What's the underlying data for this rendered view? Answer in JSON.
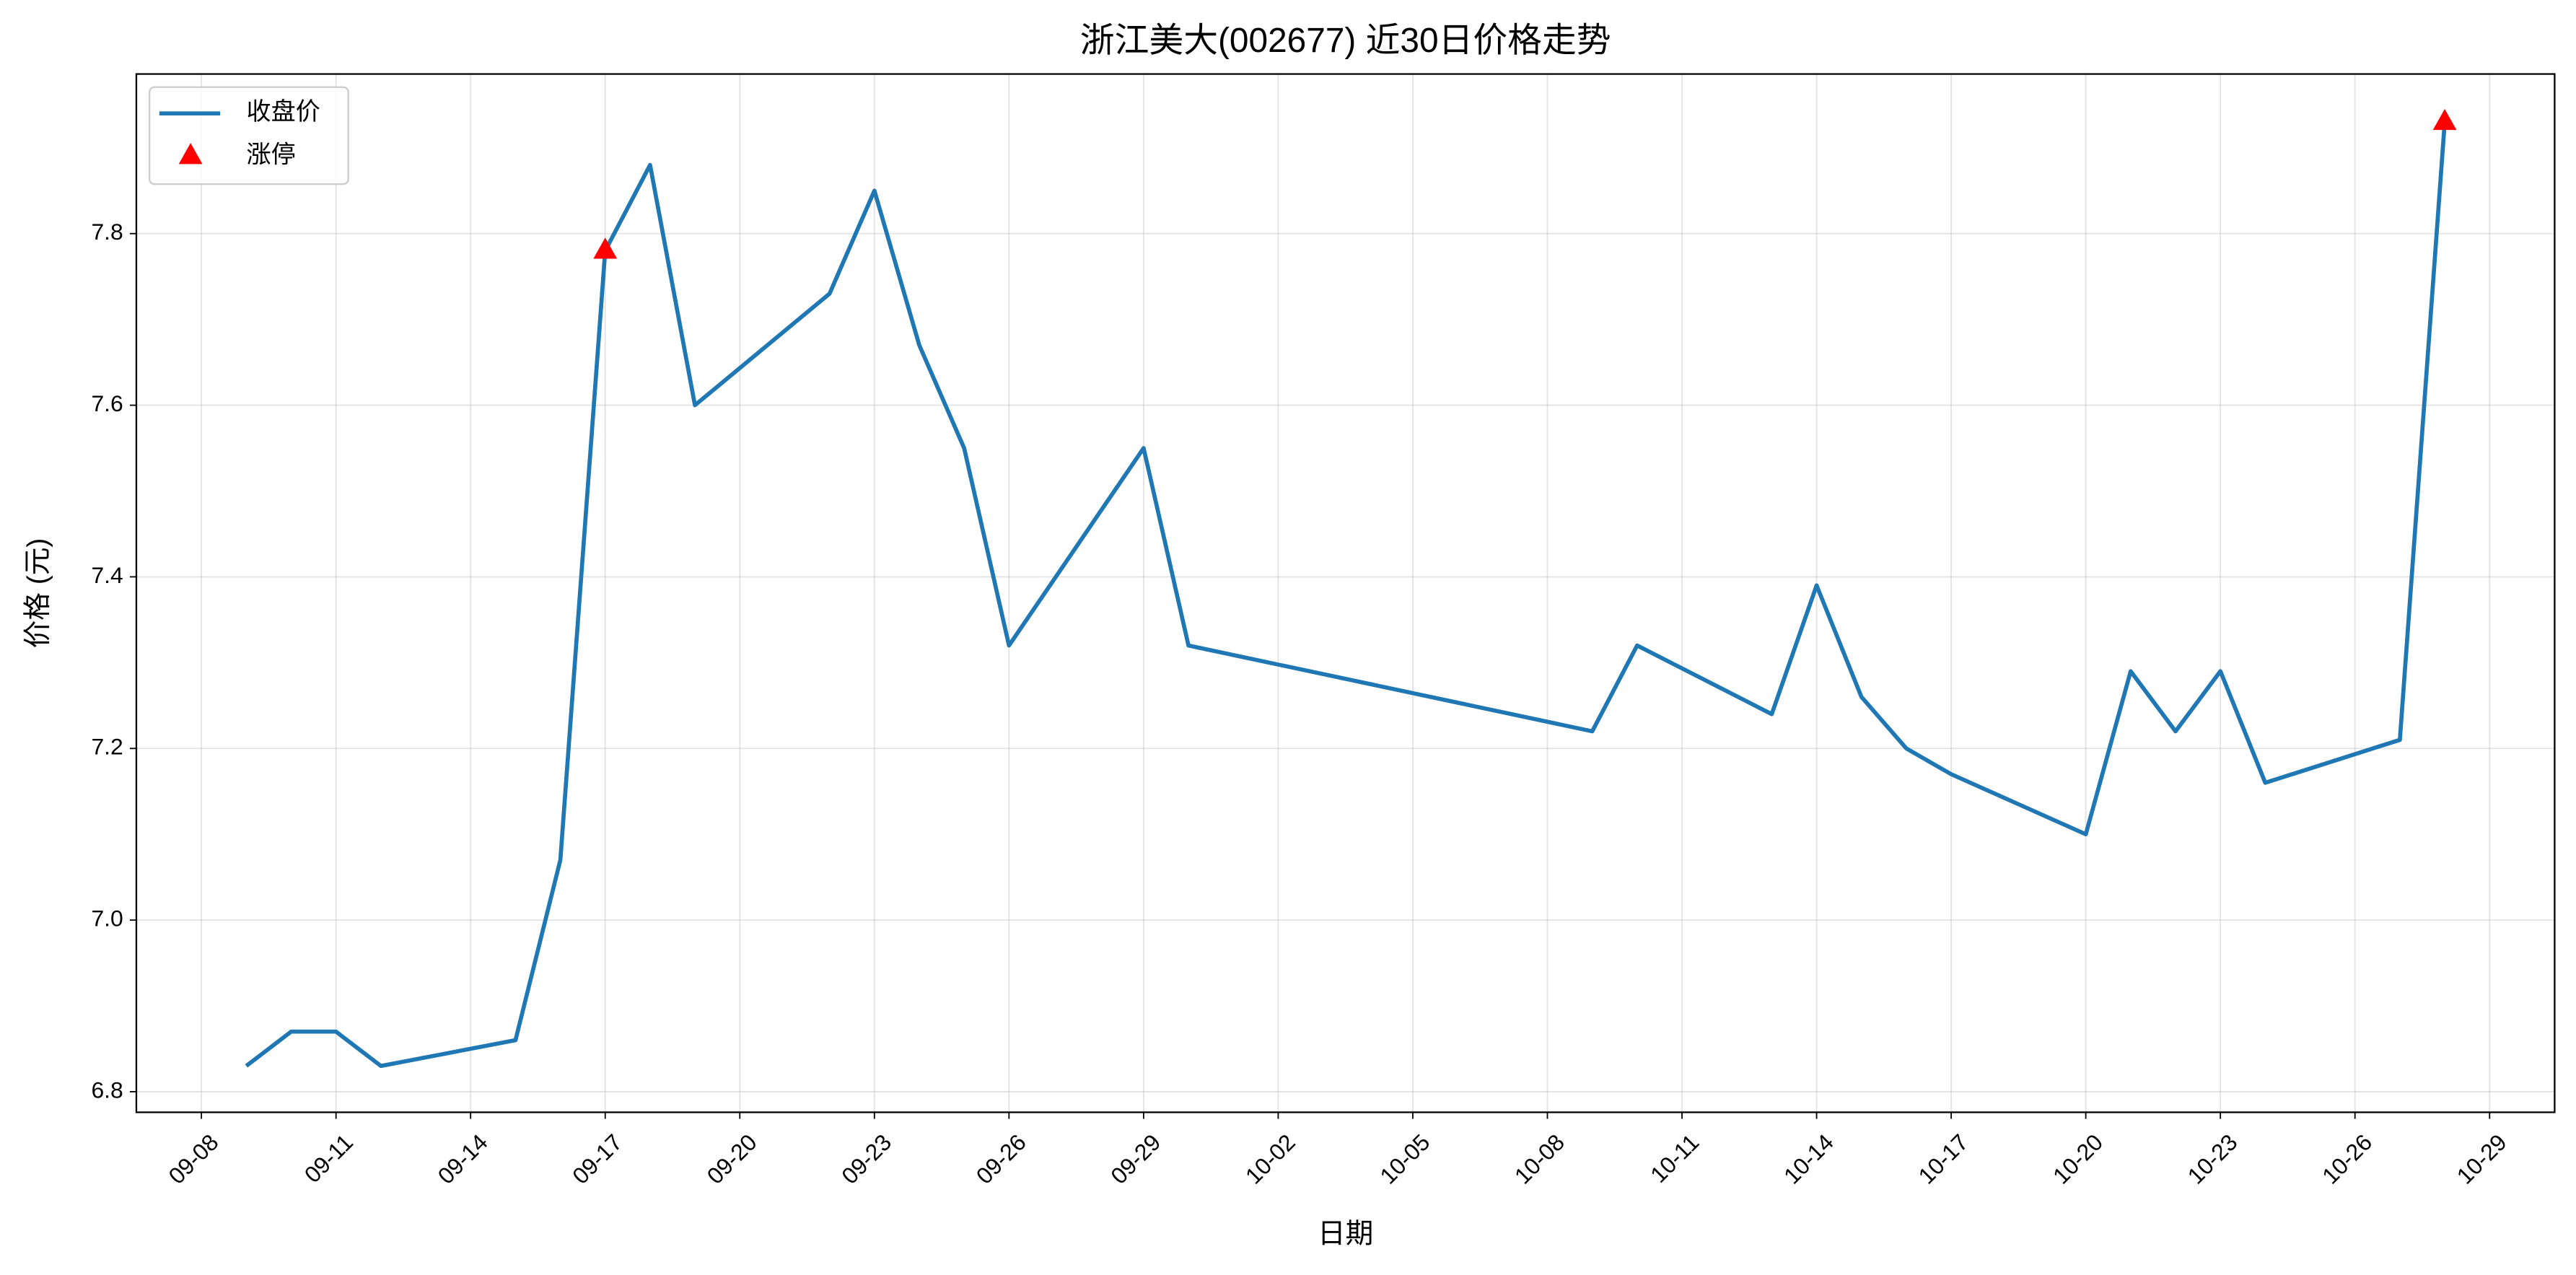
{
  "chart_data": {
    "type": "line",
    "title": "浙江美大(002677) 近30日价格走势",
    "x_label": "日期",
    "y_label": "价格 (元)",
    "grid": true,
    "legend": "upper left",
    "ylim": [
      6.776,
      7.986
    ],
    "yticks": [
      6.8,
      {
        "value": 7.0,
        "label": "7.0"
      },
      7.2,
      7.4,
      7.6,
      7.8
    ],
    "xticks": [
      "09-08",
      "09-11",
      "09-14",
      "09-17",
      "09-20",
      "09-23",
      "09-26",
      "09-29",
      "10-02",
      "10-05",
      "10-08",
      "10-11",
      "10-14",
      "10-17",
      "10-20",
      "10-23",
      "10-26",
      "10-29"
    ],
    "series": [
      {
        "name": "收盘价",
        "type": "line",
        "color": "#1f77b4",
        "x": [
          "09-09",
          "09-10",
          "09-11",
          "09-12",
          "09-15",
          "09-16",
          "09-17",
          "09-18",
          "09-19",
          "09-22",
          "09-23",
          "09-24",
          "09-25",
          "09-26",
          "09-29",
          "09-30",
          "10-09",
          "10-10",
          "10-13",
          "10-14",
          "10-15",
          "10-16",
          "10-17",
          "10-20",
          "10-21",
          "10-22",
          "10-23",
          "10-24",
          "10-27",
          "10-28"
        ],
        "values": [
          6.83,
          6.87,
          6.87,
          6.83,
          6.86,
          7.07,
          7.78,
          7.88,
          7.6,
          7.73,
          7.85,
          7.67,
          7.55,
          7.32,
          7.55,
          7.32,
          7.22,
          7.32,
          7.24,
          7.39,
          7.26,
          7.2,
          7.17,
          7.1,
          7.29,
          7.22,
          7.29,
          7.16,
          7.21,
          7.93
        ]
      },
      {
        "name": "涨停",
        "type": "scatter",
        "color": "#ff0000",
        "x": [
          "09-17",
          "10-28"
        ],
        "values": [
          7.78,
          7.93
        ]
      }
    ]
  }
}
